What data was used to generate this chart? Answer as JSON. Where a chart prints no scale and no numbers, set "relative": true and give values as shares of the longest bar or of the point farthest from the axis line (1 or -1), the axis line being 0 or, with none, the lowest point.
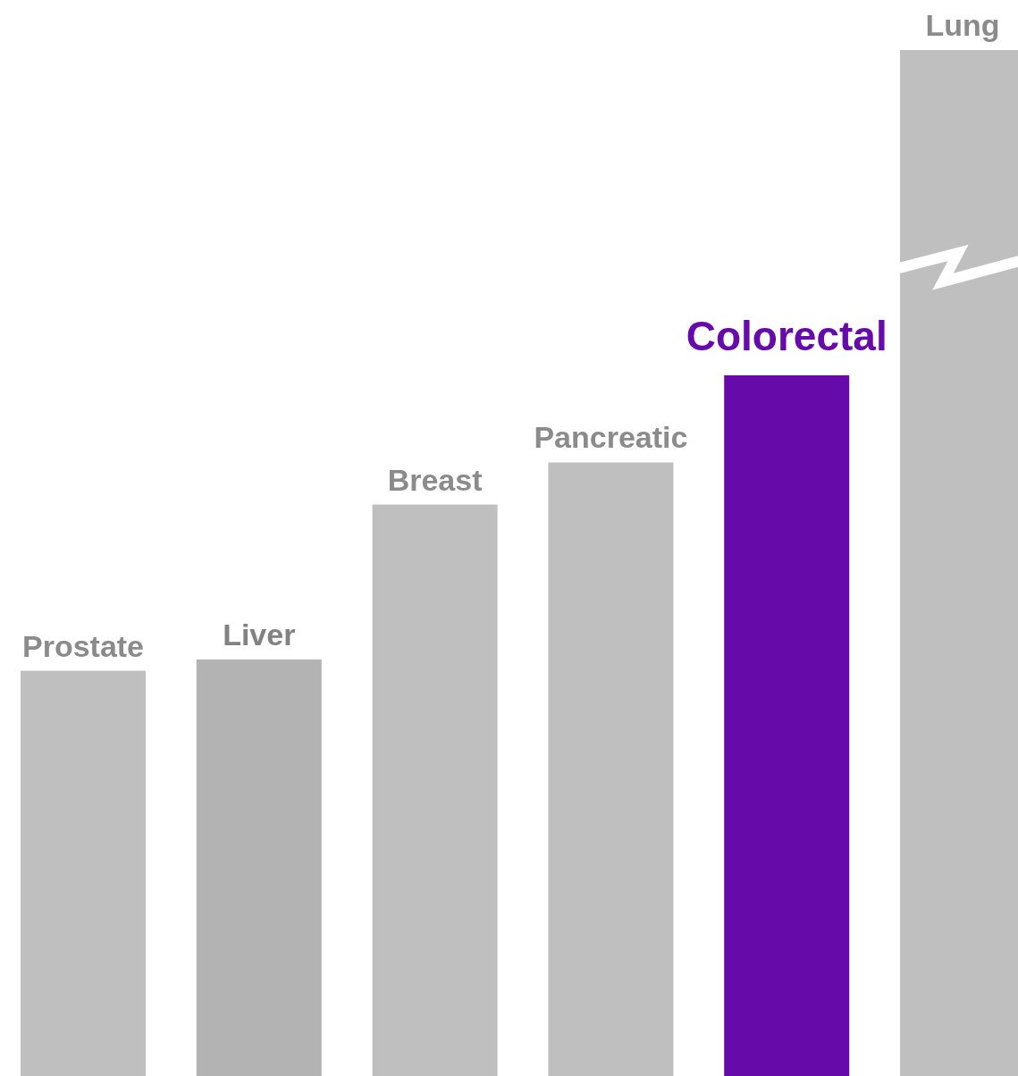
{
  "chart_data": {
    "type": "bar",
    "relative": true,
    "categories": [
      "Prostate",
      "Liver",
      "Breast",
      "Pancreatic",
      "Colorectal",
      "Lung"
    ],
    "values": [
      0.395,
      0.406,
      0.557,
      0.598,
      0.683,
      1
    ],
    "colors": [
      "#bfbfbf",
      "#b3b3b3",
      "#bfbfbf",
      "#bfbfbf",
      "#660aa9",
      "#bfbfbf"
    ]
  }
}
